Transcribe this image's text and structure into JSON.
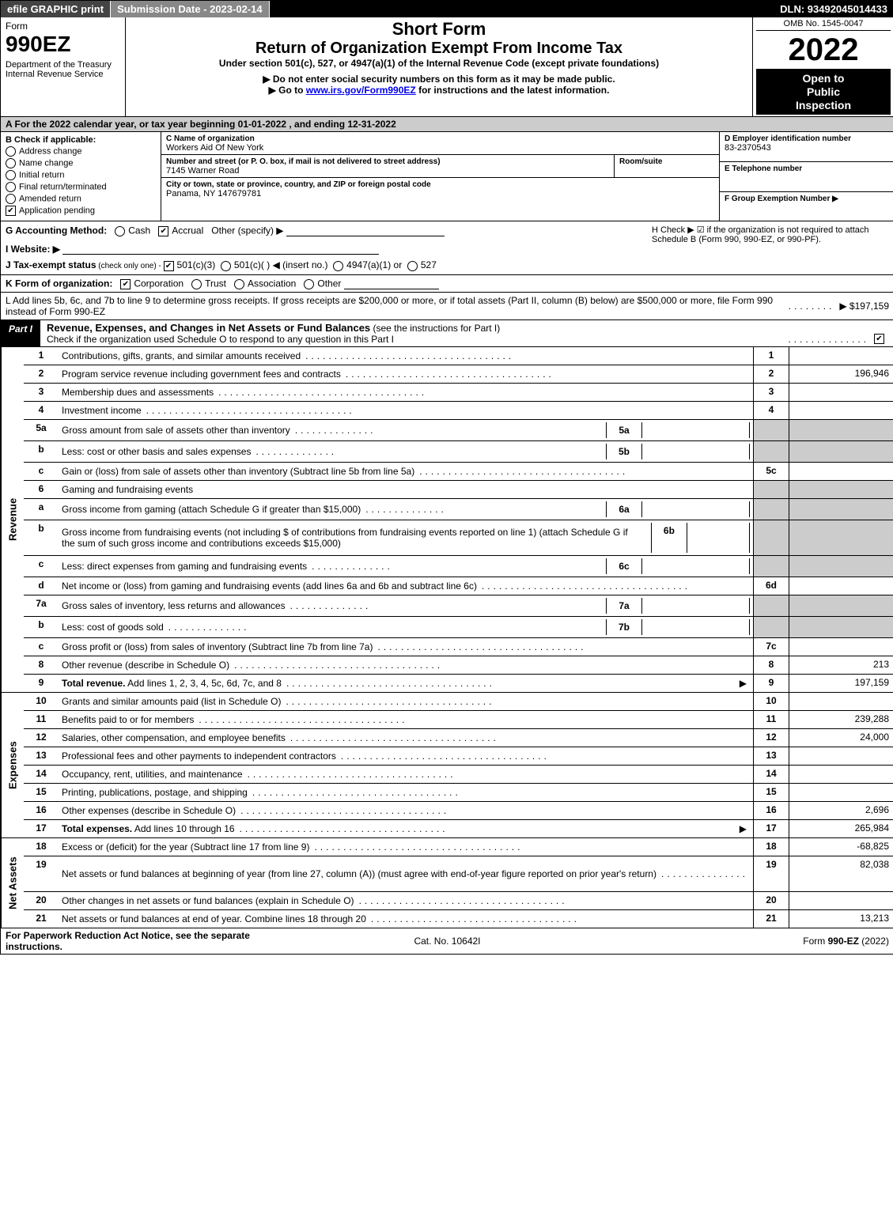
{
  "topbar": {
    "efile": "efile GRAPHIC print",
    "subdate_label": "Submission Date - 2023-02-14",
    "dln": "DLN: 93492045014433"
  },
  "header": {
    "form_word": "Form",
    "form_no": "990EZ",
    "dept": "Department of the Treasury\nInternal Revenue Service",
    "short": "Short Form",
    "title": "Return of Organization Exempt From Income Tax",
    "sub1": "Under section 501(c), 527, or 4947(a)(1) of the Internal Revenue Code (except private foundations)",
    "sub2": "▶ Do not enter social security numbers on this form as it may be made public.",
    "sub3_prefix": "▶ Go to ",
    "sub3_link": "www.irs.gov/Form990EZ",
    "sub3_suffix": " for instructions and the latest information.",
    "omb": "OMB No. 1545-0047",
    "year": "2022",
    "open": "Open to\nPublic\nInspection"
  },
  "rowA": "A  For the 2022 calendar year, or tax year beginning 01-01-2022  , and ending 12-31-2022",
  "colB": {
    "label": "B  Check if applicable:",
    "opts": [
      {
        "t": "Address change",
        "c": false,
        "shape": "round"
      },
      {
        "t": "Name change",
        "c": false,
        "shape": "round"
      },
      {
        "t": "Initial return",
        "c": false,
        "shape": "round"
      },
      {
        "t": "Final return/terminated",
        "c": false,
        "shape": "round"
      },
      {
        "t": "Amended return",
        "c": false,
        "shape": "round"
      },
      {
        "t": "Application pending",
        "c": true,
        "shape": "square"
      }
    ]
  },
  "colC": {
    "name_lbl": "C Name of organization",
    "name": "Workers Aid Of New York",
    "street_lbl": "Number and street (or P. O. box, if mail is not delivered to street address)",
    "room_lbl": "Room/suite",
    "street": "7145 Warner Road",
    "city_lbl": "City or town, state or province, country, and ZIP or foreign postal code",
    "city": "Panama, NY  147679781"
  },
  "colDEF": {
    "d_lbl": "D Employer identification number",
    "d_val": "83-2370543",
    "e_lbl": "E Telephone number",
    "e_val": "",
    "f_lbl": "F Group Exemption Number  ▶",
    "f_val": ""
  },
  "ghij": {
    "g_label": "G Accounting Method:",
    "g_cash": "Cash",
    "g_accrual": "Accrual",
    "g_other": "Other (specify) ▶",
    "g_cash_chk": false,
    "g_accrual_chk": true,
    "h_text": "H  Check ▶ ☑ if the organization is not required to attach Schedule B (Form 990, 990-EZ, or 990-PF).",
    "i_label": "I Website: ▶",
    "j_label": "J Tax-exempt status",
    "j_sub": " (check only one) - ",
    "j_501c3": "501(c)(3)",
    "j_501c3_chk": true,
    "j_501c": "501(c)(  ) ◀ (insert no.)",
    "j_4947": "4947(a)(1) or",
    "j_527": "527"
  },
  "k": {
    "label": "K Form of organization:",
    "corp": "Corporation",
    "corp_chk": true,
    "trust": "Trust",
    "assoc": "Association",
    "other": "Other"
  },
  "l": {
    "text": "L Add lines 5b, 6c, and 7b to line 9 to determine gross receipts. If gross receipts are $200,000 or more, or if total assets (Part II, column (B) below) are $500,000 or more, file Form 990 instead of Form 990-EZ",
    "arrow": "▶ $ ",
    "val": "197,159"
  },
  "partI": {
    "tag": "Part I",
    "title": "Revenue, Expenses, and Changes in Net Assets or Fund Balances",
    "sub": " (see the instructions for Part I)",
    "check_line": "Check if the organization used Schedule O to respond to any question in this Part I",
    "check_chk": true
  },
  "sections": [
    {
      "side": "Revenue",
      "rows": [
        {
          "n": "1",
          "d": "Contributions, gifts, grants, and similar amounts received",
          "ln": "1",
          "v": ""
        },
        {
          "n": "2",
          "d": "Program service revenue including government fees and contracts",
          "ln": "2",
          "v": "196,946"
        },
        {
          "n": "3",
          "d": "Membership dues and assessments",
          "ln": "3",
          "v": ""
        },
        {
          "n": "4",
          "d": "Investment income",
          "ln": "4",
          "v": ""
        },
        {
          "n": "5a",
          "d": "Gross amount from sale of assets other than inventory",
          "sub": {
            "sn": "5a",
            "sv": ""
          },
          "ln": "",
          "v": "",
          "shade": true
        },
        {
          "n": "b",
          "d": "Less: cost or other basis and sales expenses",
          "sub": {
            "sn": "5b",
            "sv": ""
          },
          "ln": "",
          "v": "",
          "shade": true
        },
        {
          "n": "c",
          "d": "Gain or (loss) from sale of assets other than inventory (Subtract line 5b from line 5a)",
          "ln": "5c",
          "v": ""
        },
        {
          "n": "6",
          "d": "Gaming and fundraising events",
          "ln": "",
          "v": "",
          "shade": true,
          "noborder": true
        },
        {
          "n": "a",
          "d": "Gross income from gaming (attach Schedule G if greater than $15,000)",
          "sub": {
            "sn": "6a",
            "sv": ""
          },
          "ln": "",
          "v": "",
          "shade": true
        },
        {
          "n": "b",
          "d": "Gross income from fundraising events (not including $                  of contributions from fundraising events reported on line 1) (attach Schedule G if the sum of such gross income and contributions exceeds $15,000)",
          "sub": {
            "sn": "6b",
            "sv": ""
          },
          "ln": "",
          "v": "",
          "shade": true,
          "tall": true
        },
        {
          "n": "c",
          "d": "Less: direct expenses from gaming and fundraising events",
          "sub": {
            "sn": "6c",
            "sv": ""
          },
          "ln": "",
          "v": "",
          "shade": true
        },
        {
          "n": "d",
          "d": "Net income or (loss) from gaming and fundraising events (add lines 6a and 6b and subtract line 6c)",
          "ln": "6d",
          "v": ""
        },
        {
          "n": "7a",
          "d": "Gross sales of inventory, less returns and allowances",
          "sub": {
            "sn": "7a",
            "sv": ""
          },
          "ln": "",
          "v": "",
          "shade": true
        },
        {
          "n": "b",
          "d": "Less: cost of goods sold",
          "sub": {
            "sn": "7b",
            "sv": ""
          },
          "ln": "",
          "v": "",
          "shade": true
        },
        {
          "n": "c",
          "d": "Gross profit or (loss) from sales of inventory (Subtract line 7b from line 7a)",
          "ln": "7c",
          "v": ""
        },
        {
          "n": "8",
          "d": "Other revenue (describe in Schedule O)",
          "ln": "8",
          "v": "213"
        },
        {
          "n": "9",
          "d": "Total revenue. Add lines 1, 2, 3, 4, 5c, 6d, 7c, and 8",
          "bold": true,
          "arrow": true,
          "ln": "9",
          "v": "197,159"
        }
      ]
    },
    {
      "side": "Expenses",
      "rows": [
        {
          "n": "10",
          "d": "Grants and similar amounts paid (list in Schedule O)",
          "ln": "10",
          "v": ""
        },
        {
          "n": "11",
          "d": "Benefits paid to or for members",
          "ln": "11",
          "v": "239,288"
        },
        {
          "n": "12",
          "d": "Salaries, other compensation, and employee benefits",
          "ln": "12",
          "v": "24,000"
        },
        {
          "n": "13",
          "d": "Professional fees and other payments to independent contractors",
          "ln": "13",
          "v": ""
        },
        {
          "n": "14",
          "d": "Occupancy, rent, utilities, and maintenance",
          "ln": "14",
          "v": ""
        },
        {
          "n": "15",
          "d": "Printing, publications, postage, and shipping",
          "ln": "15",
          "v": ""
        },
        {
          "n": "16",
          "d": "Other expenses (describe in Schedule O)",
          "ln": "16",
          "v": "2,696"
        },
        {
          "n": "17",
          "d": "Total expenses. Add lines 10 through 16",
          "bold": true,
          "arrow": true,
          "ln": "17",
          "v": "265,984"
        }
      ]
    },
    {
      "side": "Net Assets",
      "rows": [
        {
          "n": "18",
          "d": "Excess or (deficit) for the year (Subtract line 17 from line 9)",
          "ln": "18",
          "v": "-68,825"
        },
        {
          "n": "19",
          "d": "Net assets or fund balances at beginning of year (from line 27, column (A)) (must agree with end-of-year figure reported on prior year's return)",
          "ln": "19",
          "v": "82,038",
          "tall": true
        },
        {
          "n": "20",
          "d": "Other changes in net assets or fund balances (explain in Schedule O)",
          "ln": "20",
          "v": ""
        },
        {
          "n": "21",
          "d": "Net assets or fund balances at end of year. Combine lines 18 through 20",
          "ln": "21",
          "v": "13,213"
        }
      ]
    }
  ],
  "footer": {
    "left": "For Paperwork Reduction Act Notice, see the separate instructions.",
    "center": "Cat. No. 10642I",
    "right_prefix": "Form ",
    "right_form": "990-EZ",
    "right_suffix": " (2022)"
  },
  "colors": {
    "black": "#000000",
    "white": "#ffffff",
    "grey_shade": "#cccccc",
    "link": "#0000ee"
  }
}
